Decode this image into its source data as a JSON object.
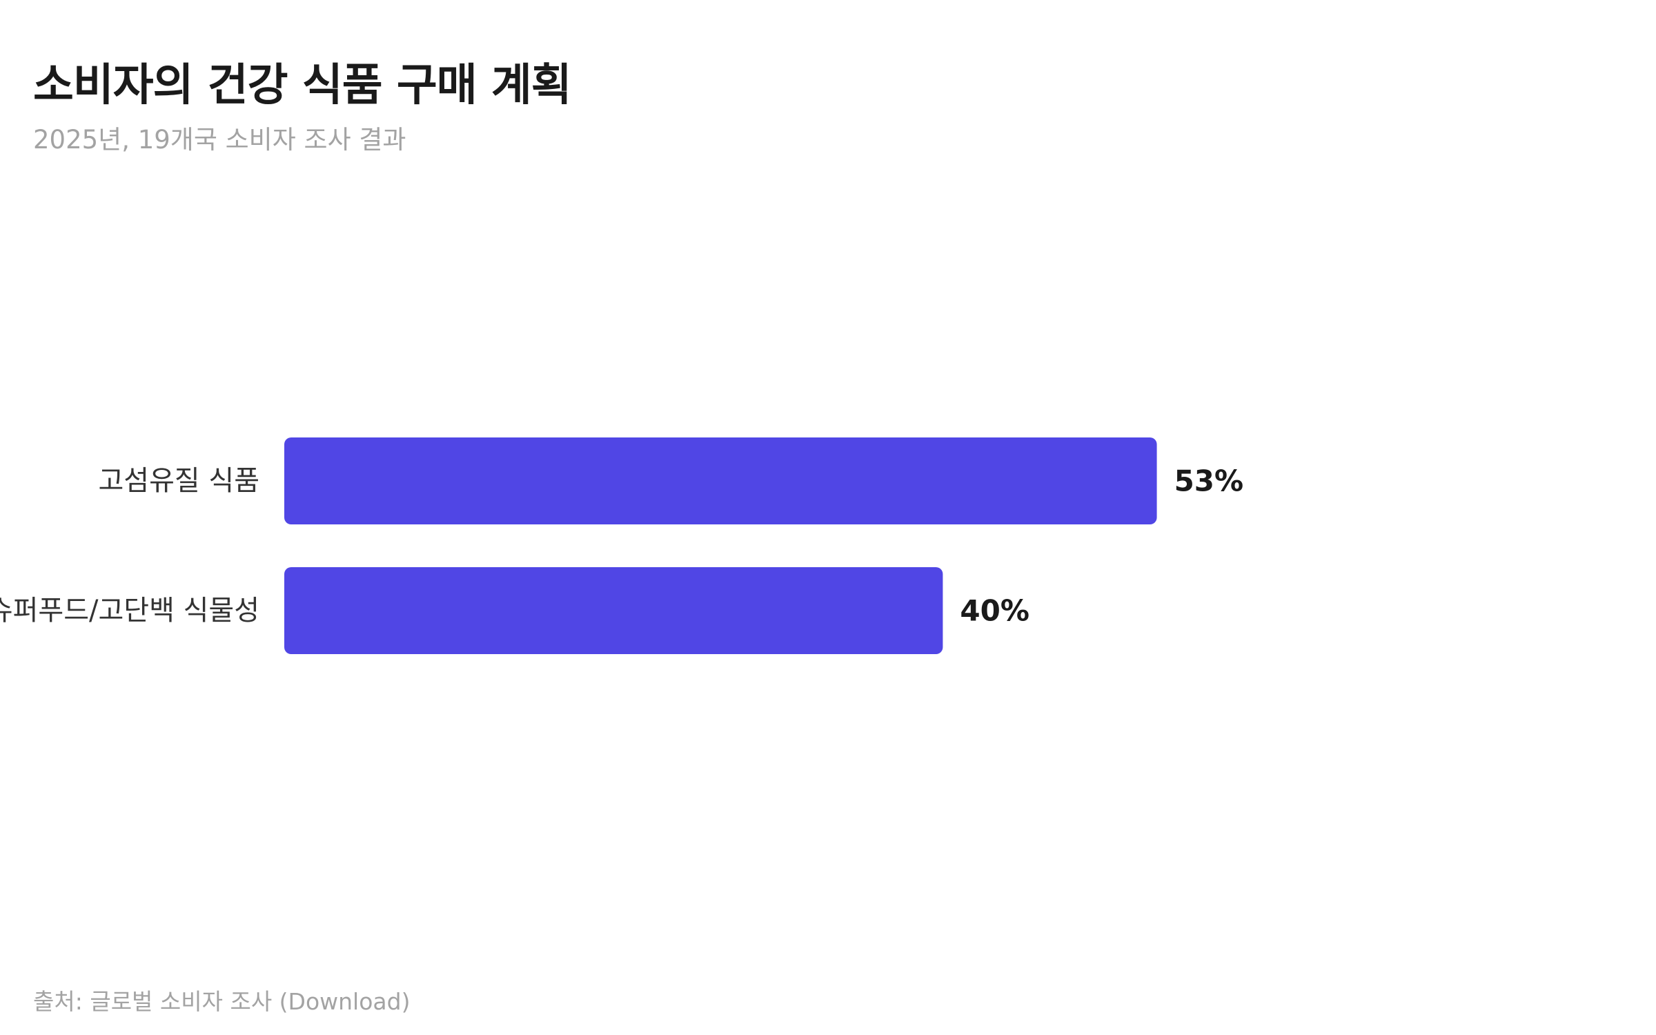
{
  "header": {
    "title": "소비자의 건강 식품 구매 계획",
    "subtitle": "2025년, 19개국 소비자 조사 결과"
  },
  "footer": {
    "source": "출처: 글로벌 소비자 조사 (Download)"
  },
  "chart_data": {
    "type": "bar",
    "orientation": "horizontal",
    "title": "소비자의 건강 식품 구매 계획",
    "subtitle": "2025년, 19개국 소비자 조사 결과",
    "categories": [
      "고섬유질 식품",
      "슈퍼푸드/고단백 식물성"
    ],
    "values": [
      53,
      40
    ],
    "value_labels": [
      "53%",
      "40%"
    ],
    "unit": "%",
    "xlim": [
      0,
      100
    ],
    "bar_color": "#5046e5",
    "grid": false,
    "legend": "none"
  }
}
